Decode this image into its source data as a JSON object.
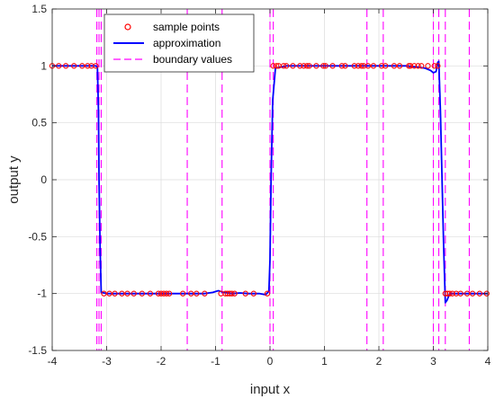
{
  "chart_data": {
    "type": "line",
    "title": "",
    "xlabel": "input x",
    "ylabel": "output y",
    "xlim": [
      -4,
      4
    ],
    "ylim": [
      -1.5,
      1.5
    ],
    "grid": true,
    "xticks": [
      -4,
      -3,
      -2,
      -1,
      0,
      1,
      2,
      3,
      4
    ],
    "xtick_labels": [
      "-4",
      "-3",
      "-2",
      "-1",
      "0",
      "1",
      "2",
      "3",
      "4"
    ],
    "yticks": [
      -1.5,
      -1,
      -0.5,
      0,
      0.5,
      1,
      1.5
    ],
    "ytick_labels": [
      "-1.5",
      "-1",
      "-0.5",
      "0",
      "0.5",
      "1",
      "1.5"
    ],
    "legend": {
      "position": "top-left",
      "entries": [
        "sample points",
        "approximation",
        "boundary values"
      ]
    },
    "colors": {
      "samples": "#ff0000",
      "approximation": "#0000ff",
      "boundaries": "#ff00ff",
      "grid": "#dcdcdc",
      "axes": "#262626"
    },
    "series": [
      {
        "name": "sample points",
        "style": "markers",
        "x": [
          -4.0,
          -3.88,
          -3.75,
          -3.6,
          -3.45,
          -3.35,
          -3.28,
          -3.2,
          -3.05,
          -2.95,
          -2.85,
          -2.72,
          -2.62,
          -2.5,
          -2.35,
          -2.2,
          -2.05,
          -2.0,
          -1.95,
          -1.9,
          -1.85,
          -1.6,
          -1.45,
          -1.35,
          -1.2,
          -0.9,
          -0.82,
          -0.78,
          -0.74,
          -0.7,
          -0.65,
          -0.45,
          -0.3,
          -0.05,
          0.06,
          0.12,
          0.16,
          0.25,
          0.3,
          0.42,
          0.55,
          0.62,
          0.68,
          0.72,
          0.85,
          0.98,
          1.02,
          1.15,
          1.32,
          1.38,
          1.55,
          1.62,
          1.68,
          1.72,
          1.8,
          1.9,
          2.05,
          2.12,
          2.28,
          2.38,
          2.55,
          2.58,
          2.65,
          2.72,
          2.78,
          2.9,
          3.02,
          3.08,
          3.22,
          3.26,
          3.3,
          3.35,
          3.42,
          3.5,
          3.62,
          3.72,
          3.85,
          3.98
        ],
        "y": [
          1,
          1,
          1,
          1,
          1,
          1,
          1,
          1,
          -1,
          -1,
          -1,
          -1,
          -1,
          -1,
          -1,
          -1,
          -1,
          -1,
          -1,
          -1,
          -1,
          -1,
          -1,
          -1,
          -1,
          -1,
          -1,
          -1,
          -1,
          -1,
          -1,
          -1,
          -1,
          -1,
          1,
          1,
          1,
          1,
          1,
          1,
          1,
          1,
          1,
          1,
          1,
          1,
          1,
          1,
          1,
          1,
          1,
          1,
          1,
          1,
          1,
          1,
          1,
          1,
          1,
          1,
          1,
          1,
          1,
          1,
          1,
          1,
          1,
          1,
          -1,
          -1,
          -1,
          -1,
          -1,
          -1,
          -1,
          -1,
          -1,
          -1
        ]
      },
      {
        "name": "approximation",
        "style": "line",
        "x": [
          -4.0,
          -3.5,
          -3.2,
          -3.17,
          -3.15,
          -3.14,
          -3.12,
          -3.1,
          -3.0,
          -2.5,
          -2.0,
          -1.5,
          -1.2,
          -1.05,
          -0.95,
          -0.85,
          -0.7,
          -0.55,
          -0.4,
          -0.2,
          -0.08,
          -0.02,
          0.0,
          0.02,
          0.05,
          0.1,
          0.3,
          0.6,
          1.0,
          1.5,
          2.0,
          2.5,
          2.7,
          2.85,
          2.95,
          3.0,
          3.05,
          3.08,
          3.1,
          3.13,
          3.16,
          3.19,
          3.22,
          3.25,
          3.3,
          3.45,
          3.7,
          4.0
        ],
        "y": [
          1.0,
          1.0,
          1.0,
          0.99,
          0.6,
          0.0,
          -0.6,
          -0.99,
          -1.0,
          -1.0,
          -1.0,
          -1.0,
          -1.0,
          -0.99,
          -0.975,
          -0.99,
          -1.0,
          -0.995,
          -1.0,
          -1.0,
          -1.01,
          -0.98,
          -0.7,
          0.0,
          0.7,
          0.98,
          1.0,
          1.0,
          1.0,
          1.0,
          1.0,
          1.0,
          0.99,
          0.98,
          0.96,
          0.94,
          0.95,
          1.03,
          1.04,
          0.6,
          0.0,
          -0.6,
          -1.08,
          -1.06,
          -1.0,
          -1.0,
          -1.0,
          -1.0
        ]
      },
      {
        "name": "boundary values",
        "style": "vertical-dashed",
        "x": [
          -3.18,
          -3.14,
          -3.1,
          -1.52,
          -0.88,
          0.0,
          0.06,
          1.78,
          2.08,
          3.0,
          3.1,
          3.22,
          3.66
        ]
      }
    ]
  }
}
